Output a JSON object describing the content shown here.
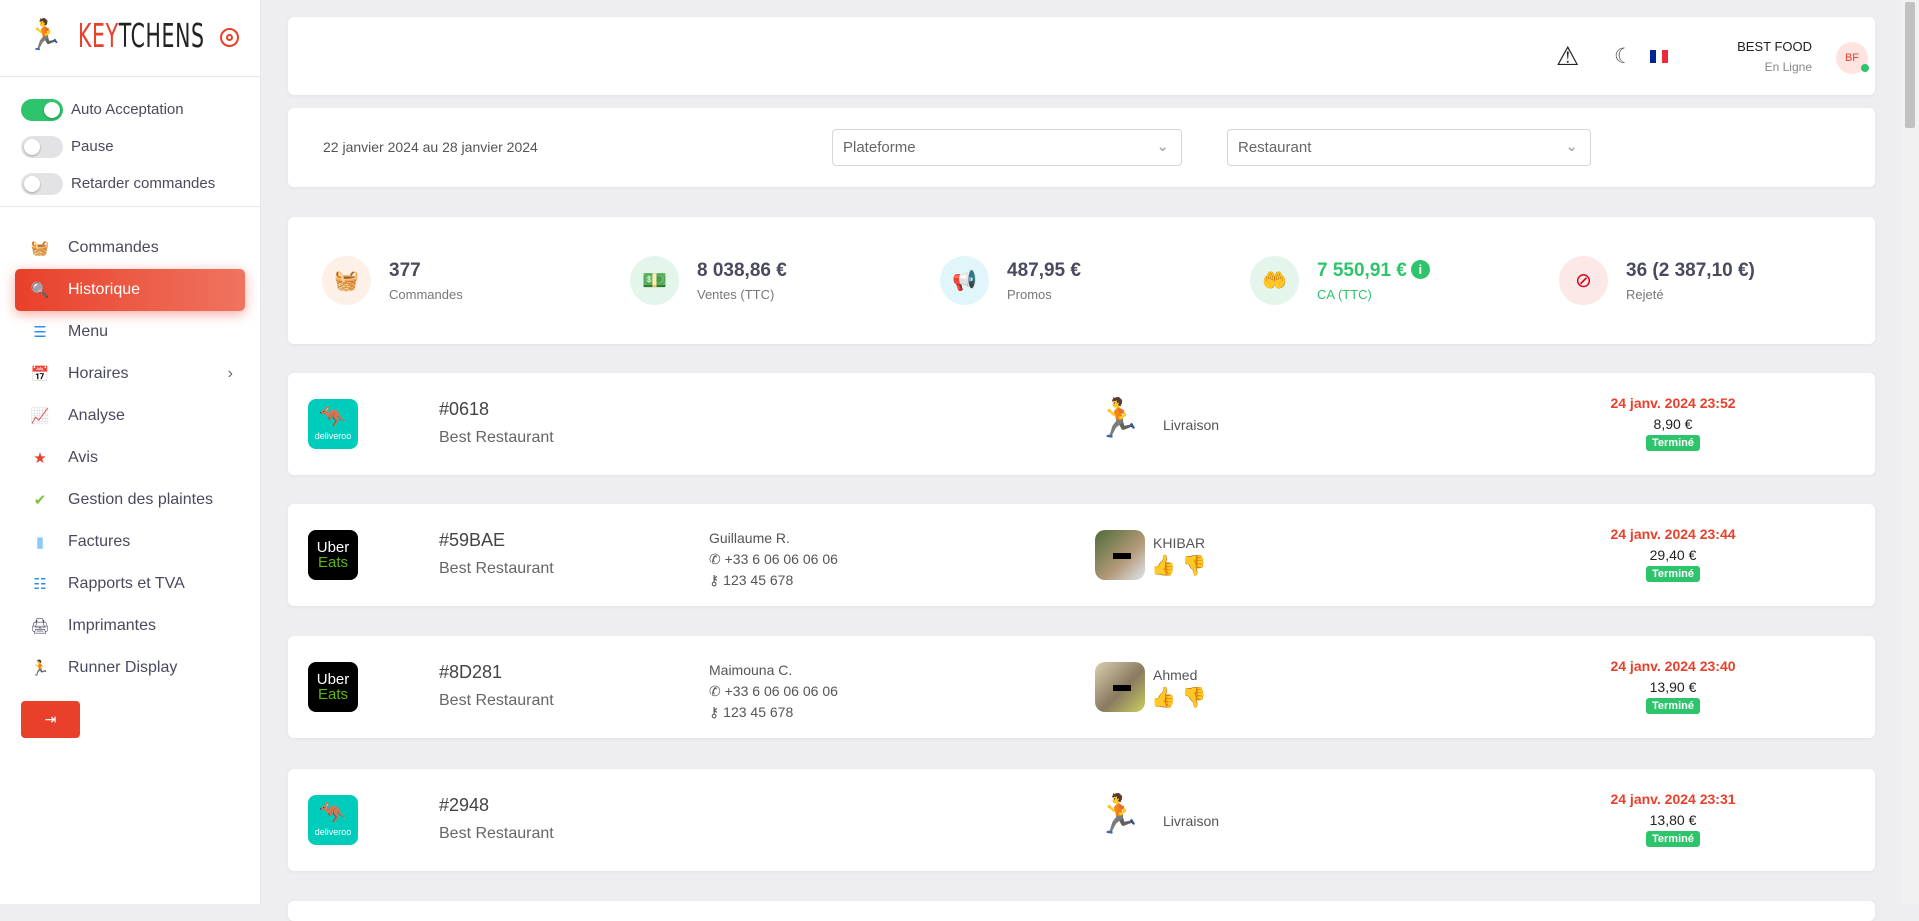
{
  "brand": {
    "logo_text": "KEYTCHENS"
  },
  "toggles": [
    {
      "label": "Auto Acceptation",
      "on": true
    },
    {
      "label": "Pause",
      "on": false
    },
    {
      "label": "Retarder commandes",
      "on": false
    }
  ],
  "nav": [
    {
      "label": "Commandes",
      "icon": "basket-icon"
    },
    {
      "label": "Historique",
      "icon": "magnifier-icon",
      "active": true
    },
    {
      "label": "Menu",
      "icon": "list-icon"
    },
    {
      "label": "Horaires",
      "icon": "schedule-icon"
    },
    {
      "label": "Analyse",
      "icon": "chart-icon"
    },
    {
      "label": "Avis",
      "icon": "star-icon"
    },
    {
      "label": "Gestion des plaintes",
      "icon": "check-badge-icon"
    },
    {
      "label": "Factures",
      "icon": "document-icon"
    },
    {
      "label": "Rapports et TVA",
      "icon": "report-icon"
    },
    {
      "label": "Imprimantes",
      "icon": "printer-icon"
    },
    {
      "label": "Runner Display",
      "icon": "runner-icon"
    }
  ],
  "header": {
    "user_name": "BEST FOOD",
    "status": "En Ligne",
    "initials": "BF"
  },
  "filters": {
    "date_range": "22 janvier 2024 au 28 janvier 2024",
    "platform_placeholder": "Plateforme",
    "restaurant_placeholder": "Restaurant"
  },
  "stats": [
    {
      "value": "377",
      "label": "Commandes"
    },
    {
      "value": "8 038,86 €",
      "label": "Ventes (TTC)"
    },
    {
      "value": "487,95 €",
      "label": "Promos"
    },
    {
      "value": "7 550,91 €",
      "label": "CA (TTC)"
    },
    {
      "value": "36 (2 387,10 €)",
      "label": "Rejeté"
    }
  ],
  "orders": [
    {
      "platform": "deliveroo",
      "id": "#0618",
      "restaurant": "Best Restaurant",
      "mode": "Livraison",
      "date": "24 janv. 2024 23:52",
      "price": "8,90 €",
      "status": "Terminé"
    },
    {
      "platform": "ubereats",
      "id": "#59BAE",
      "restaurant": "Best Restaurant",
      "customer": "Guillaume R.",
      "phone": "+33 6 06 06 06 06",
      "code": "123 45 678",
      "courier": "KHIBAR",
      "date": "24 janv. 2024 23:44",
      "price": "29,40 €",
      "status": "Terminé"
    },
    {
      "platform": "ubereats",
      "id": "#8D281",
      "restaurant": "Best Restaurant",
      "customer": "Maimouna C.",
      "phone": "+33 6 06 06 06 06",
      "code": "123 45 678",
      "courier": "Ahmed",
      "date": "24 janv. 2024 23:40",
      "price": "13,90 €",
      "status": "Terminé"
    },
    {
      "platform": "deliveroo",
      "id": "#2948",
      "restaurant": "Best Restaurant",
      "mode": "Livraison",
      "date": "24 janv. 2024 23:31",
      "price": "13,80 €",
      "status": "Terminé"
    }
  ],
  "platform_labels": {
    "deliveroo": "deliveroo",
    "uber": "Uber",
    "eats": "Eats"
  },
  "colors": {
    "accent": "#e8402a",
    "success": "#2ec46b",
    "deliveroo": "#00ccbc"
  }
}
